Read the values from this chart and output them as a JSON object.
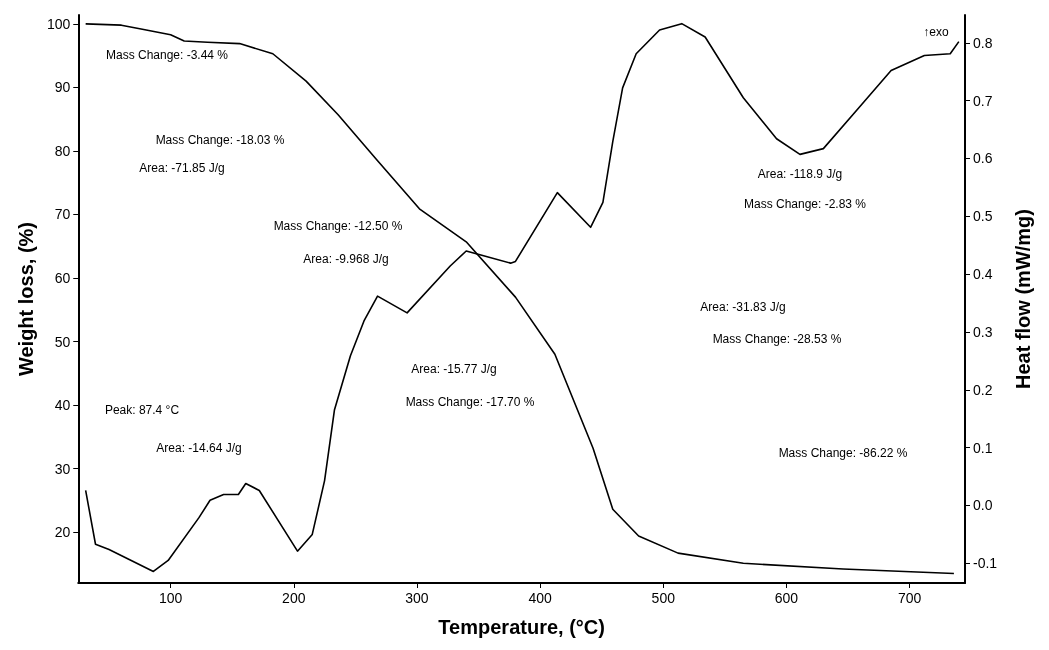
{
  "chart_data": {
    "type": "line",
    "xlabel": "Temperature, (°C)",
    "ylabel": "Weight loss, (%)",
    "y2label": "Heat flow (mW/mg)",
    "xlim": [
      25,
      745
    ],
    "xticks": [
      100,
      200,
      300,
      400,
      500,
      600,
      700
    ],
    "ylim": [
      12,
      101.4
    ],
    "yticks": [
      20,
      30,
      40,
      50,
      60,
      70,
      80,
      90,
      100
    ],
    "y2lim": [
      -0.134,
      0.848
    ],
    "y2ticks": [
      {
        "value": -0.1,
        "label": "-0.1"
      },
      {
        "value": 0,
        "label": "0.0"
      },
      0.1,
      0.2,
      0.3,
      0.4,
      0.5,
      0.6,
      0.7,
      0.8
    ],
    "grid": false,
    "marker": "none",
    "line_style": "solid",
    "series": [
      {
        "color": "#000000",
        "x": [
          31,
          60,
          76,
          100,
          111,
          130,
          156,
          183,
          210,
          236,
          267,
          302,
          340,
          380,
          412,
          443,
          459,
          480,
          512,
          565,
          646,
          736
        ],
        "values": [
          100,
          99.8,
          99.2,
          98.3,
          97.3,
          97.1,
          96.9,
          95.3,
          91,
          85.7,
          78.7,
          70.9,
          65.7,
          57,
          48,
          33.2,
          23.6,
          19.4,
          16.7,
          15.1,
          14.2,
          13.5
        ]
      },
      {
        "color": "#000000",
        "axis": "y2",
        "x": [
          31,
          39,
          50,
          86,
          98,
          123,
          132,
          143,
          155,
          161,
          172,
          203,
          215,
          225,
          233,
          246,
          257,
          268,
          292,
          327,
          340,
          376,
          380,
          414,
          441,
          451,
          459,
          467,
          478,
          497,
          515,
          534,
          565,
          592,
          611,
          630,
          659,
          685,
          712,
          733,
          740
        ],
        "values": [
          0.026,
          -0.067,
          -0.076,
          -0.114,
          -0.095,
          -0.021,
          0.009,
          0.019,
          0.019,
          0.038,
          0.026,
          -0.079,
          -0.05,
          0.043,
          0.165,
          0.259,
          0.319,
          0.362,
          0.333,
          0.414,
          0.44,
          0.419,
          0.422,
          0.541,
          0.481,
          0.524,
          0.629,
          0.722,
          0.781,
          0.822,
          0.833,
          0.81,
          0.705,
          0.634,
          0.607,
          0.617,
          0.688,
          0.752,
          0.778,
          0.781,
          0.802
        ]
      }
    ],
    "annotations": [
      "Mass Change: -3.44 %",
      "Mass Change: -18.03 %",
      "Area: -71.85 J/g",
      "Mass Change: -12.50 %",
      "Area: -9.968 J/g",
      "Area: -118.9 J/g",
      "Mass Change: -2.83 %",
      "Area: -31.83 J/g",
      "Mass Change: -28.53 %",
      "Mass Change: -86.22 %",
      "Area: -15.77 J/g",
      "Mass Change: -17.70 %",
      "Peak: 87.4 °C",
      "Area: -14.64 J/g",
      "↑exo"
    ]
  }
}
